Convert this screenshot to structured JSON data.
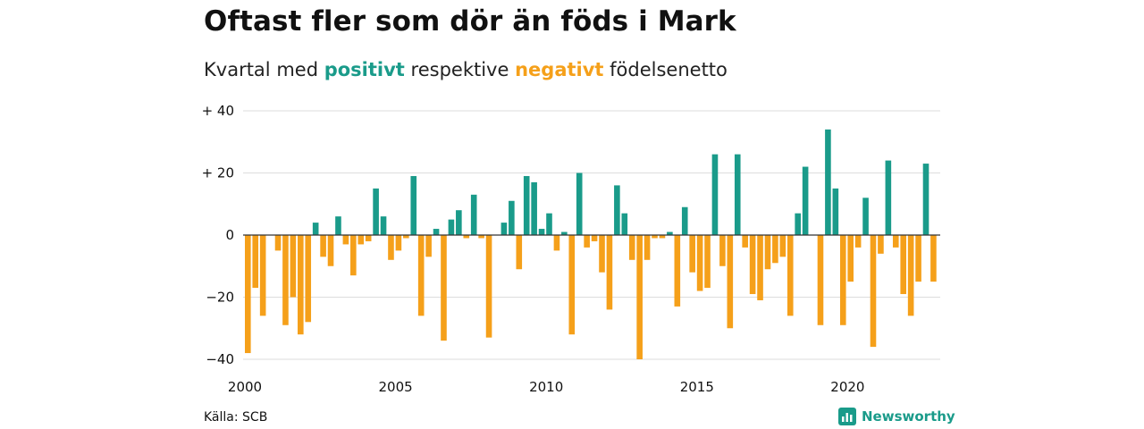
{
  "title": "Oftast fler som dör än föds i Mark",
  "subtitle": {
    "prefix": "Kvartal med",
    "positive_word": "positivt",
    "middle": "respektive",
    "negative_word": "negativt",
    "suffix": "födelsenetto"
  },
  "colors": {
    "positive": "#1a9b8a",
    "negative": "#f5a01a",
    "grid": "#dddddd",
    "zero": "#333333"
  },
  "source": "Källa: SCB",
  "brand": {
    "name": "Newsworthy",
    "icon": "chart-logo-icon",
    "color": "#1a9b8a"
  },
  "chart_data": {
    "type": "bar",
    "title": "Oftast fler som dör än föds i Mark",
    "xlabel": "",
    "ylabel": "",
    "ylim": [
      -40,
      40
    ],
    "yticks": [
      {
        "value": 40,
        "label": "+ 40"
      },
      {
        "value": 20,
        "label": "+ 20"
      },
      {
        "value": 0,
        "label": "0"
      },
      {
        "value": -20,
        "label": "−20"
      },
      {
        "value": -40,
        "label": "−40"
      }
    ],
    "xticks": [
      {
        "year": 2000,
        "label": "2000"
      },
      {
        "year": 2005,
        "label": "2005"
      },
      {
        "year": 2010,
        "label": "2010"
      },
      {
        "year": 2015,
        "label": "2015"
      },
      {
        "year": 2020,
        "label": "2020"
      }
    ],
    "grid": true,
    "quarters_start": "2000Q1",
    "values": [
      -38,
      -17,
      -26,
      0,
      -5,
      -29,
      -20,
      -32,
      -28,
      4,
      -7,
      -10,
      6,
      -3,
      -13,
      -3,
      -2,
      15,
      6,
      -8,
      -5,
      -1,
      19,
      -26,
      -7,
      2,
      -34,
      5,
      8,
      -1,
      13,
      -1,
      -33,
      0,
      4,
      11,
      -11,
      19,
      17,
      2,
      7,
      -5,
      1,
      -32,
      20,
      -4,
      -2,
      -12,
      -24,
      16,
      7,
      -8,
      -40,
      -8,
      -1,
      -1,
      1,
      -23,
      9,
      -12,
      -18,
      -17,
      26,
      -10,
      -30,
      26,
      -4,
      -19,
      -21,
      -11,
      -9,
      -7,
      -26,
      7,
      22,
      0,
      -29,
      34,
      15,
      -29,
      -15,
      -4,
      12,
      -36,
      -6,
      24,
      -4,
      -19,
      -26,
      -15,
      23,
      -15
    ]
  }
}
